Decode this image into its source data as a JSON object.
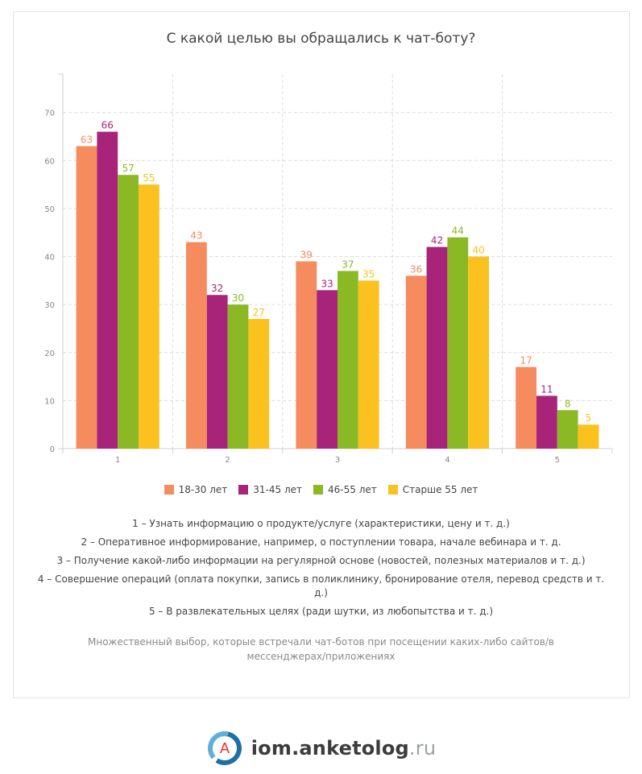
{
  "title": "С какой целью вы обращались к чат-боту?",
  "chart_data": {
    "type": "bar",
    "title": "С какой целью вы обращались к чат-боту?",
    "categories": [
      "1",
      "2",
      "3",
      "4",
      "5"
    ],
    "series": [
      {
        "name": "18-30 лет",
        "color": "#f58b5f",
        "values": [
          63,
          43,
          39,
          36,
          17
        ]
      },
      {
        "name": "31-45 лет",
        "color": "#a8237a",
        "values": [
          66,
          32,
          33,
          42,
          11
        ]
      },
      {
        "name": "46-55 лет",
        "color": "#8bb925",
        "values": [
          57,
          30,
          37,
          44,
          8
        ]
      },
      {
        "name": "Старше 55 лет",
        "color": "#fbc21f",
        "values": [
          55,
          27,
          35,
          40,
          5
        ]
      }
    ],
    "yticks": [
      0,
      10,
      20,
      30,
      40,
      50,
      60,
      70
    ],
    "ylim": [
      0,
      78
    ],
    "grid": true,
    "legend_position": "bottom",
    "data_labels": true
  },
  "notes": [
    "1 – Узнать информацию о продукте/услуге (характеристики, цену и т. д.)",
    "2 – Оперативное информирование, например, о поступлении товара, начале вебинара и т. д.",
    "3 – Получение какой-либо информации на регулярной основе (новостей, полезных материалов и т. д.)",
    "4 – Совершение операций (оплата покупки, запись в поликлинику, бронирование отеля, перевод средств и т. д.)",
    "5 – В развлекательных целях (ради шутки, из любопытства и т. д.)"
  ],
  "footnote": "Множественный выбор, которые встречали чат-ботов при посещении каких-либо сайтов/в мессенджерах/приложениях",
  "brand": {
    "name": "iom.anketolog",
    "tld": ".ru",
    "logo_letter": "A",
    "logo_colors": [
      "#1d6fa5",
      "#5fb0d8",
      "#e8322b"
    ]
  }
}
